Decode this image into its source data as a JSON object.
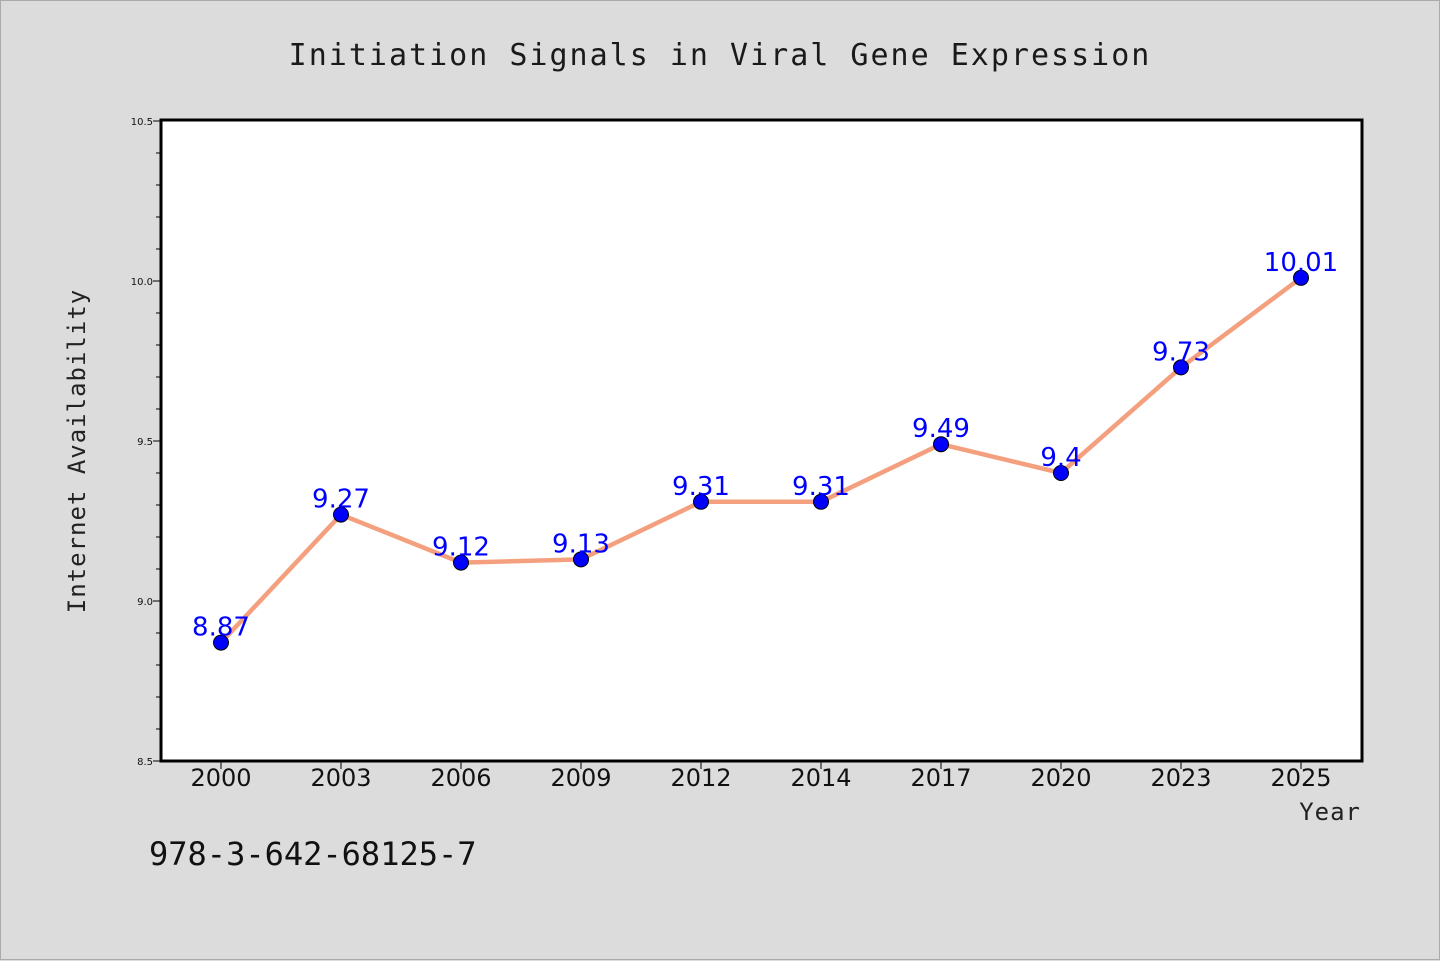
{
  "chart_data": {
    "type": "line",
    "title": "Initiation Signals in Viral Gene Expression",
    "xlabel": "Year",
    "ylabel": "Internet Availability",
    "categories": [
      "2000",
      "2003",
      "2006",
      "2009",
      "2012",
      "2014",
      "2017",
      "2020",
      "2023",
      "2025"
    ],
    "series": [
      {
        "values": [
          8.87,
          9.27,
          9.12,
          9.13,
          9.31,
          9.31,
          9.49,
          9.4,
          9.73,
          10.01
        ],
        "labels": [
          "8.87",
          "9.27",
          "9.12",
          "9.13",
          "9.31",
          "9.31",
          "9.49",
          "9.4",
          "9.73",
          "10.01"
        ]
      }
    ],
    "ylim": [
      8.5,
      10.5
    ],
    "yticks": [
      "8.5",
      "9.0",
      "9.5",
      "10.0",
      "10.5"
    ],
    "grid": false,
    "colors": {
      "line": "#f4a07e",
      "marker": "#0000ff",
      "label": "#0000ff",
      "background": "#dcdcdc",
      "plot_background": "#ffffff"
    }
  },
  "footer_text": "978-3-642-68125-7"
}
